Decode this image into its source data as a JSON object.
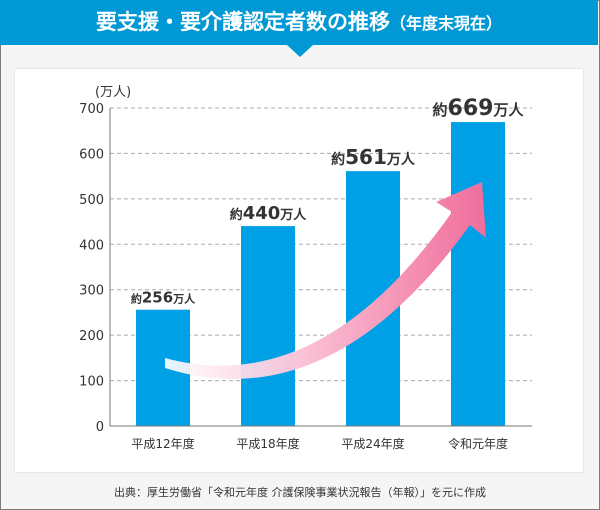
{
  "header": {
    "title": "要支援・要介護認定者数の推移",
    "subtitle": "（年度末現在）"
  },
  "chart_data": {
    "type": "bar",
    "title": "要支援・要介護認定者数の推移（年度末現在）",
    "ylabel": "(万人)",
    "ylim": [
      0,
      700
    ],
    "yticks": [
      0,
      100,
      200,
      300,
      400,
      500,
      600,
      700
    ],
    "grid": true,
    "categories": [
      "平成12年度",
      "平成18年度",
      "平成24年度",
      "令和元年度"
    ],
    "values": [
      256,
      440,
      561,
      669
    ],
    "data_labels": [
      {
        "prefix": "約",
        "value": "256",
        "suffix": "万人"
      },
      {
        "prefix": "約",
        "value": "440",
        "suffix": "万人"
      },
      {
        "prefix": "約",
        "value": "561",
        "suffix": "万人"
      },
      {
        "prefix": "約",
        "value": "669",
        "suffix": "万人"
      }
    ],
    "bar_color": "#00a0e6",
    "annotation": "rising pink arrow"
  },
  "source": "出典：厚生労働省「令和元年度 介護保険事業状況報告（年報）」を元に作成"
}
